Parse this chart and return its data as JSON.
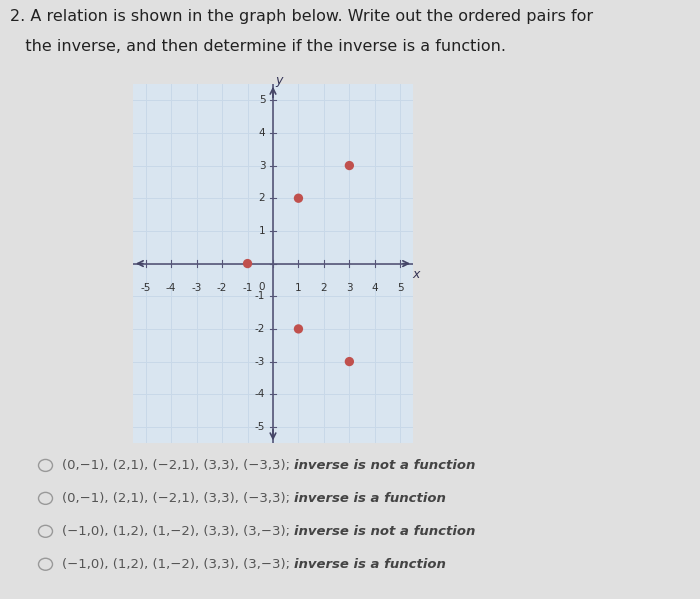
{
  "title_line1": "2. A relation is shown in the graph below. Write out the ordered pairs for",
  "title_line2": "   the inverse, and then determine if the inverse is a function.",
  "points": [
    [
      -1,
      0
    ],
    [
      1,
      2
    ],
    [
      3,
      3
    ],
    [
      1,
      -2
    ],
    [
      3,
      -3
    ]
  ],
  "point_color": "#c0504d",
  "point_size": 45,
  "xlim": [
    -5.5,
    5.5
  ],
  "ylim": [
    -5.5,
    5.5
  ],
  "xticks": [
    -5,
    -4,
    -3,
    -2,
    -1,
    0,
    1,
    2,
    3,
    4,
    5
  ],
  "yticks": [
    -5,
    -4,
    -3,
    -2,
    -1,
    0,
    1,
    2,
    3,
    4,
    5
  ],
  "grid_color": "#c8d8e8",
  "bg_color": "#d9e5f0",
  "outer_bg": "#e8e8e8",
  "answer_options": [
    {
      "text_normal": "(0,−1), (2,1), (−2,1), (3,3), (−3,3); ",
      "text_bold": "inverse is not a function"
    },
    {
      "text_normal": "(0,−1), (2,1), (−2,1), (3,3), (−3,3); ",
      "text_bold": "inverse is a function"
    },
    {
      "text_normal": "(−1,0), (1,2), (1,−2), (3,3), (3,−3); ",
      "text_bold": "inverse is not a function"
    },
    {
      "text_normal": "(−1,0), (1,2), (1,−2), (3,3), (3,−3); ",
      "text_bold": "inverse is a function"
    }
  ],
  "answer_fontsize": 9.5,
  "title_fontsize": 11.5
}
